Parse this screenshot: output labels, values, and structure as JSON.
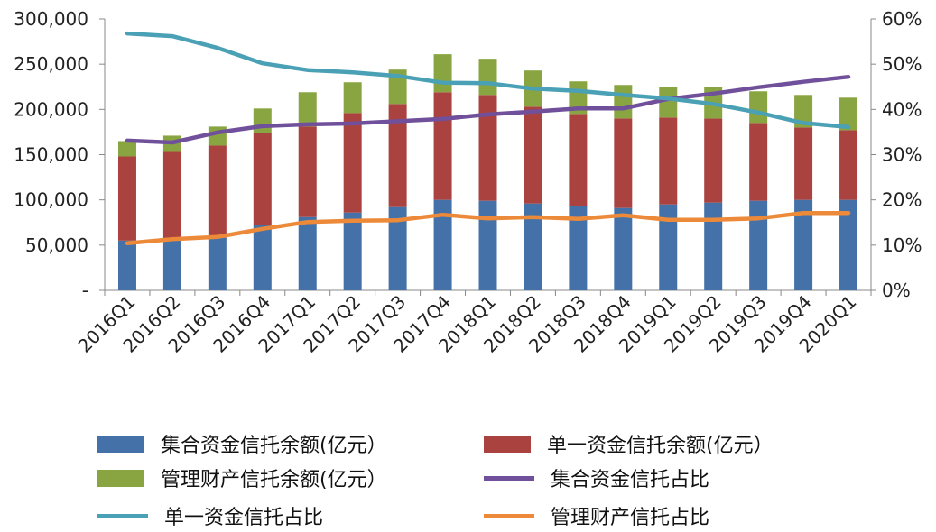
{
  "chart_data": {
    "type": "bar",
    "stacked": true,
    "categories": [
      "2016Q1",
      "2016Q2",
      "2016Q3",
      "2016Q4",
      "2017Q1",
      "2017Q2",
      "2017Q3",
      "2017Q4",
      "2018Q1",
      "2018Q2",
      "2018Q3",
      "2018Q4",
      "2019Q1",
      "2019Q2",
      "2019Q3",
      "2019Q4",
      "2020Q1"
    ],
    "y_left": {
      "ticks": [
        "-",
        "50,000",
        "100,000",
        "150,000",
        "200,000",
        "250,000",
        "300,000"
      ],
      "ylim": [
        0,
        300000
      ]
    },
    "y_right": {
      "ticks": [
        "0%",
        "10%",
        "20%",
        "30%",
        "40%",
        "50%",
        "60%"
      ],
      "ylim": [
        0,
        60
      ]
    },
    "grid": false,
    "legend_position": "bottom",
    "bar_series": [
      {
        "name": "集合资金信托余额(亿元）",
        "color": "#4472A8",
        "values": [
          55000,
          56000,
          58000,
          72000,
          81000,
          86000,
          92000,
          100000,
          99000,
          96000,
          93000,
          91000,
          95000,
          97000,
          99000,
          100000,
          100000
        ]
      },
      {
        "name": "单一资金信托余额(亿元）",
        "color": "#AA4340",
        "values": [
          93000,
          97000,
          102000,
          102000,
          100000,
          110000,
          114000,
          119000,
          117000,
          107000,
          102000,
          99000,
          96000,
          93000,
          86000,
          80000,
          77000
        ]
      },
      {
        "name": "管理财产信托余额(亿元）",
        "color": "#89A542",
        "values": [
          17000,
          18000,
          21000,
          27000,
          38000,
          34000,
          38000,
          42000,
          40000,
          40000,
          36000,
          37000,
          34000,
          35000,
          35000,
          36000,
          36000
        ]
      }
    ],
    "line_series": [
      {
        "name": "集合资金信托占比",
        "color": "#70509B",
        "values": [
          33.1,
          32.7,
          34.9,
          36.3,
          36.7,
          36.9,
          37.4,
          37.9,
          38.9,
          39.5,
          40.2,
          40.2,
          42.3,
          43.5,
          44.9,
          46.1,
          47.2
        ]
      },
      {
        "name": "单一资金信托占比",
        "color": "#4AA0B5",
        "values": [
          56.8,
          56.2,
          53.6,
          50.2,
          48.7,
          48.2,
          47.4,
          45.9,
          45.8,
          44.6,
          44.1,
          43.2,
          42.4,
          41.2,
          39.3,
          37.0,
          36.1
        ]
      },
      {
        "name": "管理财产信托占比",
        "color": "#ED8A3A",
        "values": [
          10.4,
          11.3,
          11.8,
          13.6,
          15.1,
          15.4,
          15.5,
          16.7,
          15.9,
          16.2,
          15.8,
          16.6,
          15.6,
          15.6,
          15.9,
          17.1,
          17.1
        ]
      }
    ]
  }
}
